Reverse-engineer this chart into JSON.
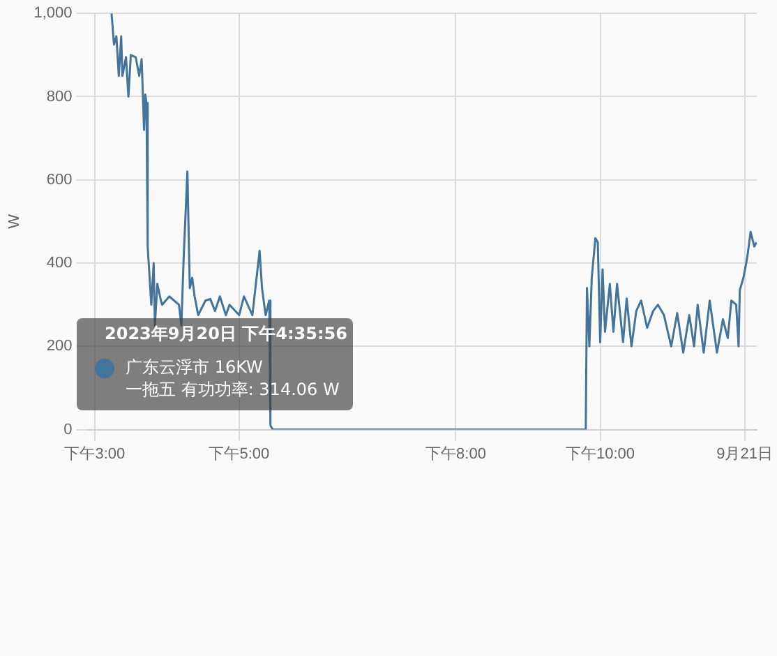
{
  "chart_data": {
    "type": "line",
    "ylabel": "W",
    "x": [
      "2023-09-20T15:14",
      "2023-09-20T15:16",
      "2023-09-20T15:18",
      "2023-09-20T15:20",
      "2023-09-20T15:22",
      "2023-09-20T15:23",
      "2023-09-20T15:26",
      "2023-09-20T15:28",
      "2023-09-20T15:30",
      "2023-09-20T15:34",
      "2023-09-20T15:37",
      "2023-09-20T15:39",
      "2023-09-20T15:40",
      "2023-09-20T15:41",
      "2023-09-20T15:42",
      "2023-09-20T15:43",
      "2023-09-20T15:44",
      "2023-09-20T15:47",
      "2023-09-20T15:49",
      "2023-09-20T15:50",
      "2023-09-20T15:52",
      "2023-09-20T15:55",
      "2023-09-20T15:56",
      "2023-09-20T16:02",
      "2023-09-20T16:10",
      "2023-09-20T16:12",
      "2023-09-20T16:14",
      "2023-09-20T16:17",
      "2023-09-20T16:19",
      "2023-09-20T16:21",
      "2023-09-20T16:23",
      "2023-09-20T16:26",
      "2023-09-20T16:32",
      "2023-09-20T16:36",
      "2023-09-20T16:40",
      "2023-09-20T16:44",
      "2023-09-20T16:49",
      "2023-09-20T16:52",
      "2023-09-20T17:00",
      "2023-09-20T17:04",
      "2023-09-20T17:11",
      "2023-09-20T17:17",
      "2023-09-20T17:19",
      "2023-09-20T17:22",
      "2023-09-20T17:25",
      "2023-09-20T17:26",
      "2023-09-20T17:28",
      "2023-09-20T21:48",
      "2023-09-20T21:49",
      "2023-09-20T21:51",
      "2023-09-20T21:53",
      "2023-09-20T21:56",
      "2023-09-20T21:58",
      "2023-09-20T22:00",
      "2023-09-20T22:02",
      "2023-09-20T22:04",
      "2023-09-20T22:08",
      "2023-09-20T22:11",
      "2023-09-20T22:14",
      "2023-09-20T22:19",
      "2023-09-20T22:22",
      "2023-09-20T22:26",
      "2023-09-20T22:30",
      "2023-09-20T22:34",
      "2023-09-20T22:39",
      "2023-09-20T22:44",
      "2023-09-20T22:48",
      "2023-09-20T22:53",
      "2023-09-20T22:59",
      "2023-09-20T23:04",
      "2023-09-20T23:09",
      "2023-09-20T23:14",
      "2023-09-20T23:18",
      "2023-09-20T23:21",
      "2023-09-20T23:26",
      "2023-09-20T23:31",
      "2023-09-20T23:37",
      "2023-09-20T23:42",
      "2023-09-20T23:46",
      "2023-09-20T23:49",
      "2023-09-20T23:53",
      "2023-09-20T23:55",
      "2023-09-20T23:56",
      "2023-09-20T23:59",
      "2023-09-21T00:02",
      "2023-09-21T00:05",
      "2023-09-21T00:08",
      "2023-09-21T00:10"
    ],
    "series": [
      {
        "color": "#44739c",
        "values": [
          1000,
          925,
          945,
          850,
          945,
          850,
          895,
          800,
          900,
          895,
          850,
          890,
          805,
          720,
          805,
          785,
          440,
          300,
          400,
          250,
          350,
          310,
          300,
          320,
          300,
          250,
          420,
          620,
          340,
          365,
          320,
          275,
          310,
          314,
          285,
          320,
          275,
          300,
          275,
          320,
          275,
          430,
          340,
          275,
          310,
          10,
          0,
          0,
          340,
          200,
          365,
          460,
          450,
          210,
          385,
          235,
          350,
          235,
          350,
          210,
          315,
          200,
          285,
          310,
          245,
          285,
          300,
          275,
          200,
          280,
          185,
          275,
          200,
          300,
          185,
          310,
          185,
          265,
          220,
          310,
          300,
          200,
          335,
          365,
          410,
          475,
          440,
          450
        ]
      }
    ],
    "xlim": [
      "2023-09-20T14:54",
      "2023-09-21T00:10"
    ],
    "xticks": [
      {
        "value": "2023-09-20T15:00",
        "label": "下午3:00"
      },
      {
        "value": "2023-09-20T17:00",
        "label": "下午5:00"
      },
      {
        "value": "2023-09-20T20:00",
        "label": "下午8:00"
      },
      {
        "value": "2023-09-20T22:00",
        "label": "下午10:00"
      },
      {
        "value": "2023-09-21T00:00",
        "label": "9月21日"
      }
    ],
    "ylim": [
      0,
      1000
    ],
    "yticks": [
      0,
      200,
      400,
      600,
      800,
      {
        "value": 1000,
        "label": "1,000"
      }
    ],
    "grid": true,
    "marker": "none",
    "line_style": "solid",
    "annotations": [
      "2023年9月20日 下午4:35:56",
      "广东云浮市 16KW\n一拖五 有功功率: 314.06 W"
    ]
  }
}
